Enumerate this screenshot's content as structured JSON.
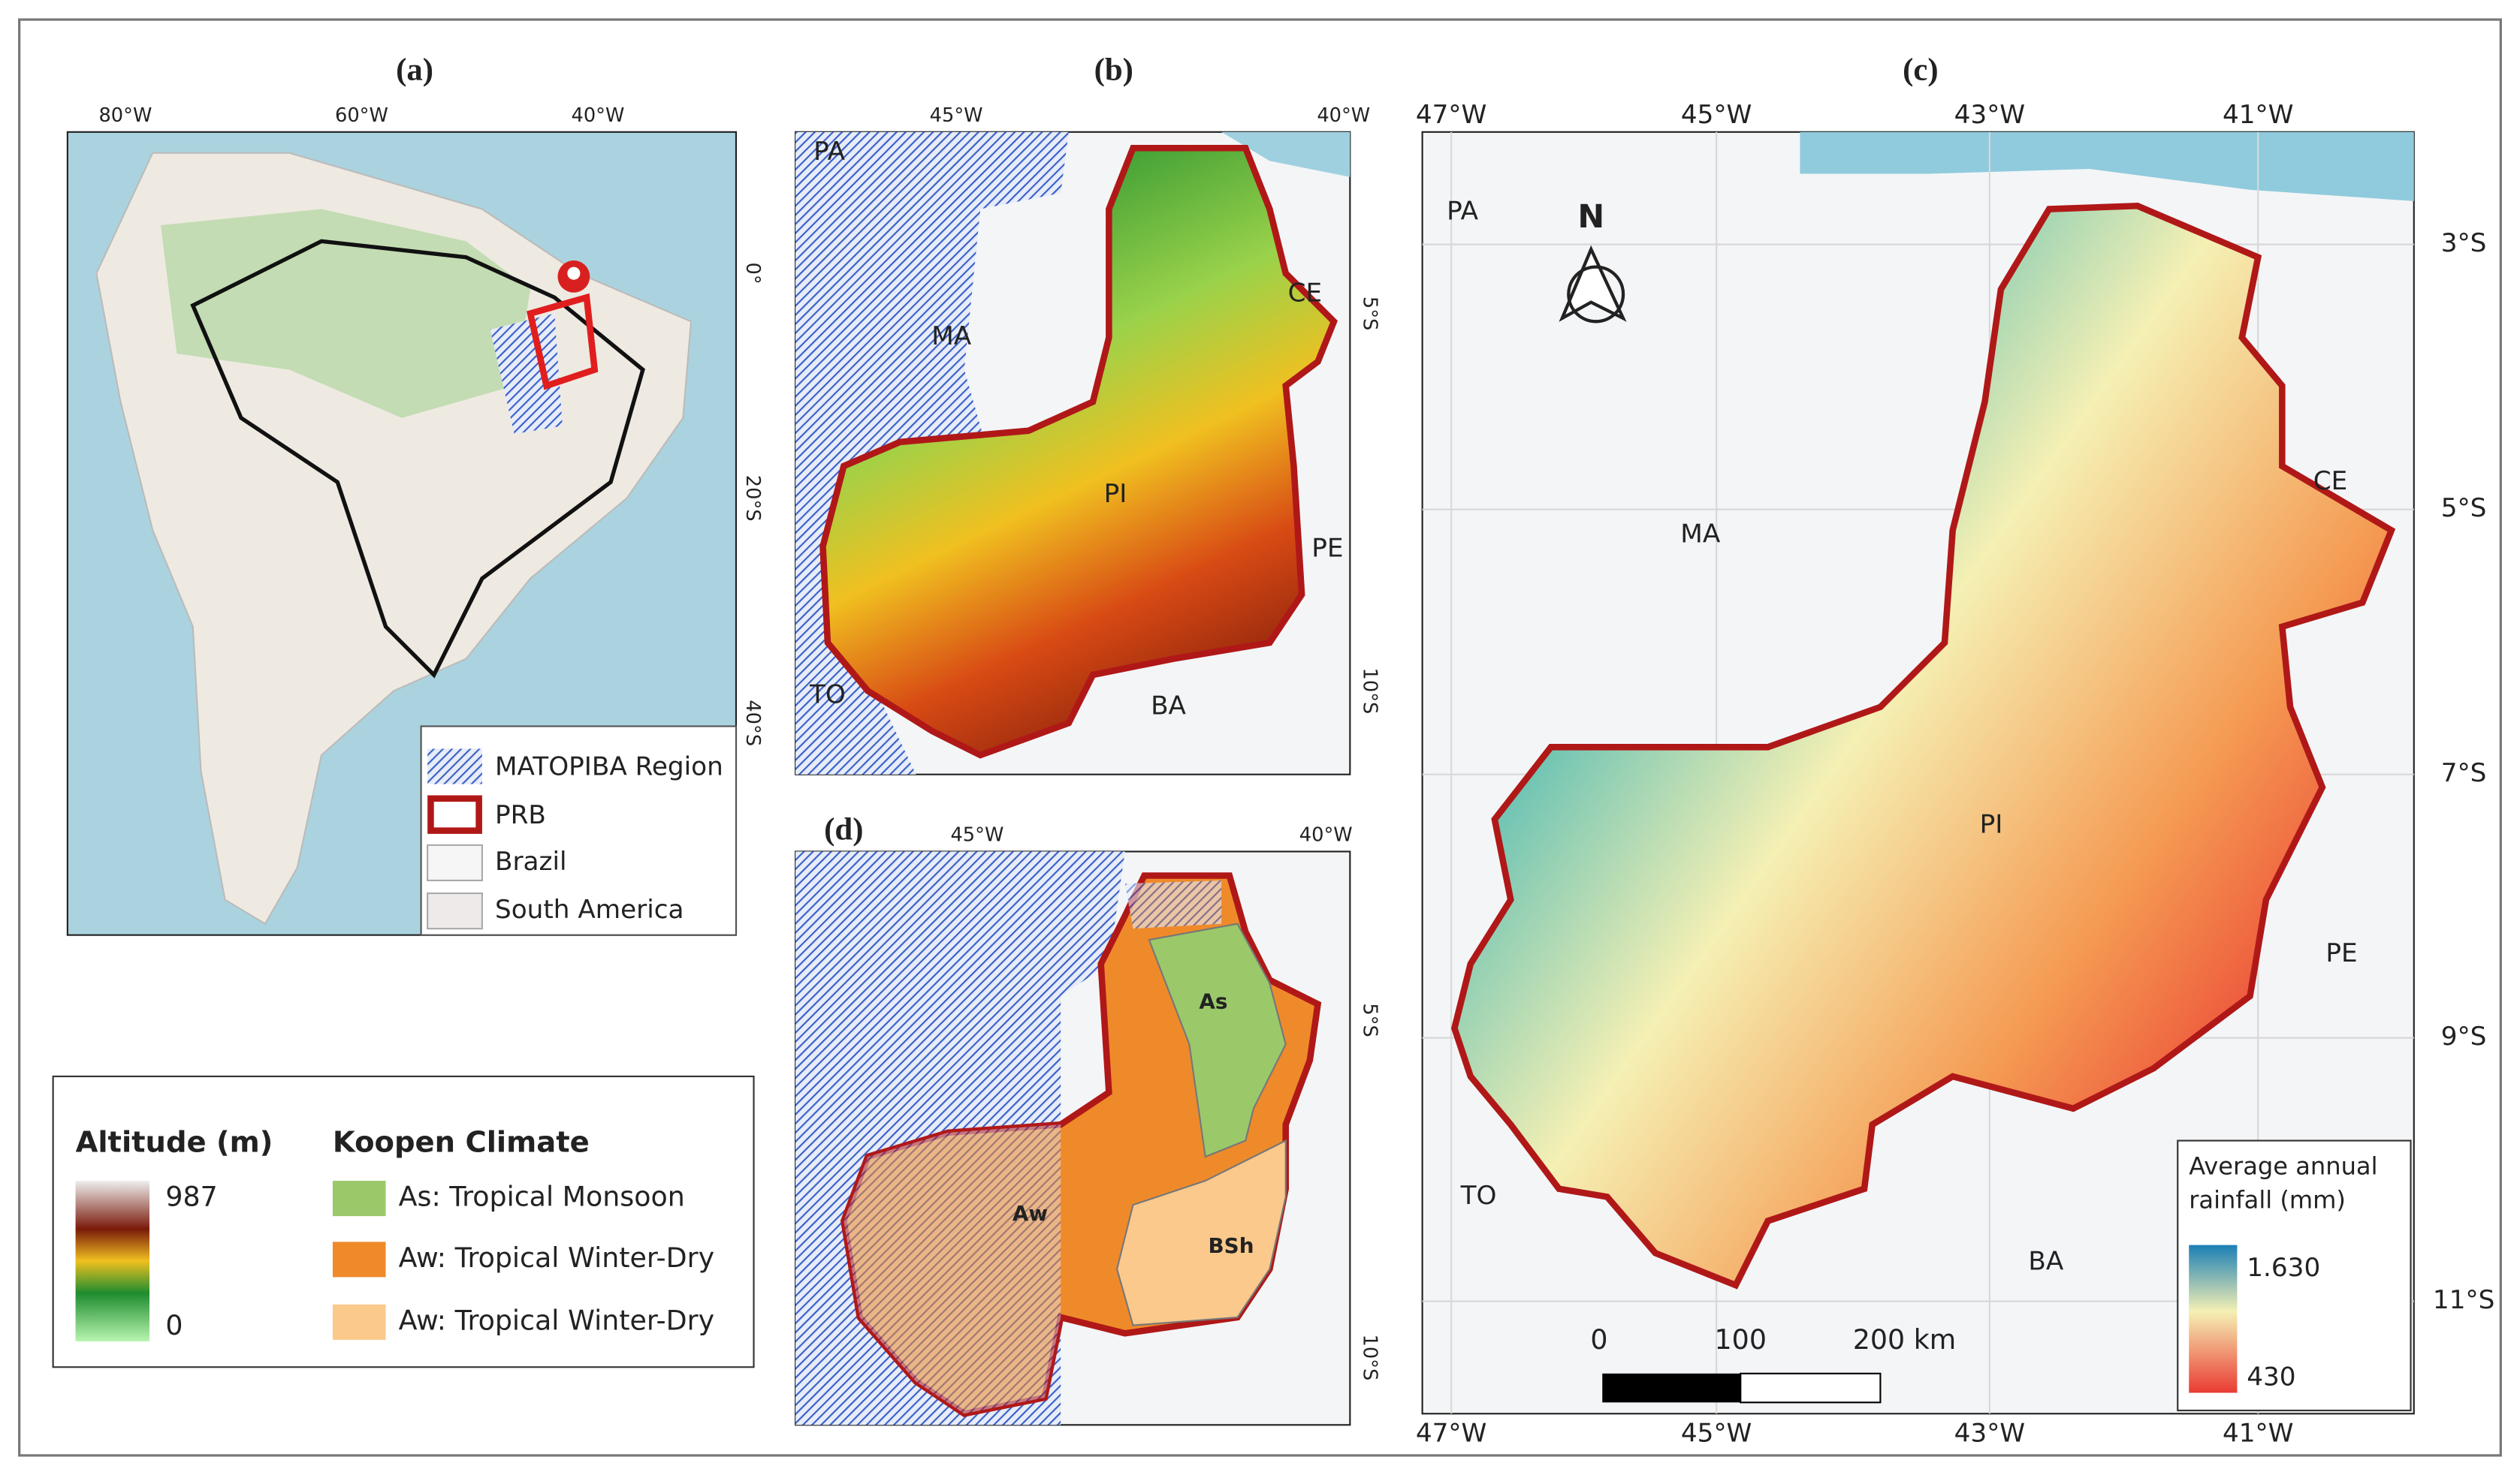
{
  "panels": [
    {
      "label": "(a)",
      "lon_ticks": [
        "80°W",
        "60°W",
        "40°W"
      ],
      "lat_ticks": [
        "0°",
        "20°S",
        "40°S"
      ],
      "legend": [
        "MATOPIBA Region",
        "PRB",
        "Brazil",
        "South America"
      ]
    },
    {
      "label": "(b)",
      "lon_ticks": [
        "45°W",
        "40°W"
      ],
      "lat_ticks": [
        "5°S",
        "10°S"
      ],
      "states": [
        "PA",
        "MA",
        "CE",
        "PI",
        "PE",
        "TO",
        "BA"
      ]
    },
    {
      "label": "(c)",
      "lon_ticks": [
        "47°W",
        "45°W",
        "43°W",
        "41°W"
      ],
      "lon_ticks_bottom": [
        "47°W",
        "45°W",
        "43°W",
        "41°W"
      ],
      "lat_ticks": [
        "3°S",
        "5°S",
        "7°S",
        "9°S",
        "11°S"
      ],
      "states": [
        "PA",
        "MA",
        "CE",
        "PI",
        "PE",
        "TO",
        "BA"
      ],
      "north": "N",
      "scale": [
        "0",
        "100",
        "200 km"
      ],
      "legend_title": "Average annual rainfall (mm)",
      "legend_max": "1.630",
      "legend_min": "430"
    },
    {
      "label": "(d)",
      "lon_ticks": [
        "45°W",
        "40°W"
      ],
      "lat_ticks": [
        "5°S",
        "10°S"
      ],
      "zones": [
        "As",
        "Aw",
        "BSh"
      ]
    }
  ],
  "legend": {
    "altitude_title": "Altitude (m)",
    "altitude_max": "987",
    "altitude_min": "0",
    "climate_title": "Koopen Climate",
    "climate_items": [
      "As: Tropical Monsoon",
      "Aw: Tropical Winter-Dry",
      "Aw: Tropical Winter-Dry"
    ]
  }
}
